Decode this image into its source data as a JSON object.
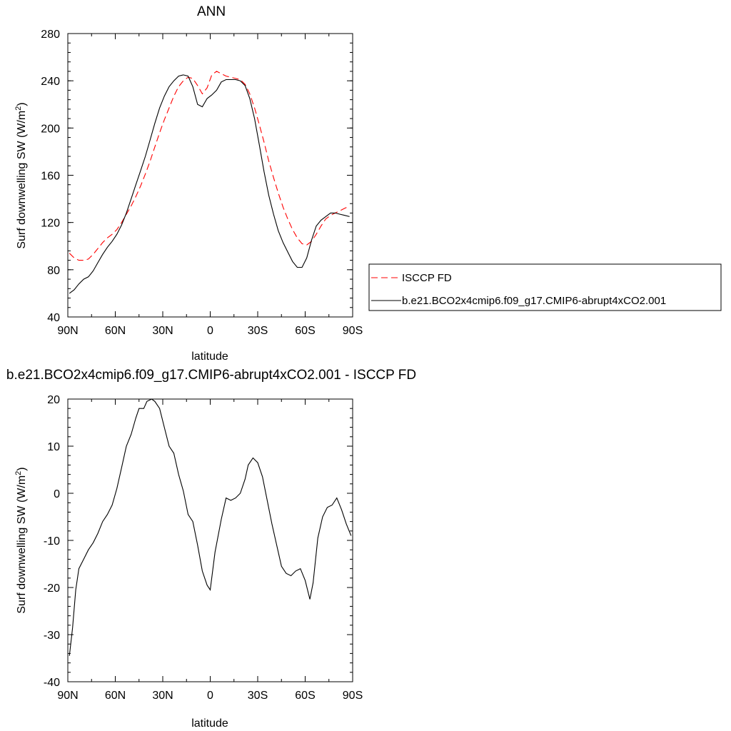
{
  "chart_data": [
    {
      "type": "line",
      "title": "ANN",
      "xlabel": "latitude",
      "ylabel": "Surf downwelling SW (W/m",
      "ylabel_sup": "2",
      "ylabel_end": ")",
      "xlim": [
        90,
        -90
      ],
      "ylim": [
        40,
        280
      ],
      "x_ticks": [
        {
          "value": 90,
          "label": "90N"
        },
        {
          "value": 60,
          "label": "60N"
        },
        {
          "value": 30,
          "label": "30N"
        },
        {
          "value": 0,
          "label": "0"
        },
        {
          "value": -30,
          "label": "30S"
        },
        {
          "value": -60,
          "label": "60S"
        },
        {
          "value": -90,
          "label": "90S"
        }
      ],
      "y_ticks": [
        40,
        80,
        120,
        160,
        200,
        240,
        280
      ],
      "legend_position": "right",
      "series": [
        {
          "name": "ISCCP FD",
          "color": "#ff0000",
          "dash": "dashed",
          "x": [
            89,
            86,
            83,
            80,
            77,
            74,
            71,
            68,
            65,
            62,
            59,
            56,
            53,
            50,
            47,
            44,
            41,
            38,
            35,
            32,
            29,
            26,
            23,
            20,
            17,
            14,
            11,
            8,
            5,
            2,
            -1,
            -4,
            -7,
            -10,
            -13,
            -16,
            -19,
            -22,
            -25,
            -28,
            -31,
            -34,
            -37,
            -40,
            -43,
            -46,
            -49,
            -52,
            -55,
            -58,
            -61,
            -64,
            -67,
            -70,
            -73,
            -76,
            -79,
            -82,
            -85,
            -88
          ],
          "y": [
            94,
            90,
            88,
            88,
            89,
            93,
            98,
            103,
            107,
            110,
            114,
            120,
            127,
            134,
            142,
            151,
            161,
            172,
            184,
            196,
            207,
            217,
            227,
            235,
            240,
            243,
            242,
            236,
            229,
            234,
            245,
            248,
            246,
            244,
            243,
            242,
            241,
            237,
            229,
            217,
            203,
            188,
            172,
            158,
            145,
            133,
            123,
            114,
            107,
            102,
            101,
            104,
            110,
            117,
            123,
            126,
            128,
            130,
            132,
            134
          ]
        },
        {
          "name": "b.e21.BCO2x4cmip6.f09_g17.CMIP6-abrupt4xCO2.001",
          "color": "#000000",
          "dash": "solid",
          "x": [
            89,
            86,
            83,
            80,
            77,
            74,
            71,
            68,
            65,
            62,
            59,
            56,
            53,
            50,
            47,
            44,
            41,
            38,
            35,
            32,
            29,
            26,
            23,
            20,
            17,
            14,
            11,
            8,
            5,
            2,
            -1,
            -4,
            -7,
            -10,
            -13,
            -16,
            -19,
            -22,
            -25,
            -28,
            -31,
            -34,
            -37,
            -40,
            -43,
            -46,
            -49,
            -52,
            -55,
            -58,
            -61,
            -64,
            -67,
            -70,
            -73,
            -76,
            -79,
            -82,
            -85,
            -88
          ],
          "y": [
            60,
            63,
            68,
            72,
            74,
            79,
            86,
            93,
            99,
            104,
            110,
            118,
            128,
            140,
            152,
            164,
            176,
            190,
            204,
            217,
            227,
            235,
            240,
            244,
            245,
            244,
            235,
            220,
            218,
            225,
            228,
            232,
            239,
            241,
            241,
            241,
            240,
            236,
            225,
            208,
            186,
            163,
            143,
            127,
            113,
            103,
            95,
            87,
            82,
            82,
            90,
            105,
            117,
            122,
            125,
            128,
            128,
            127,
            126,
            125
          ]
        }
      ]
    },
    {
      "type": "line",
      "title": "b.e21.BCO2x4cmip6.f09_g17.CMIP6-abrupt4xCO2.001 - ISCCP FD",
      "xlabel": "latitude",
      "ylabel": "Surf downwelling SW (W/m",
      "ylabel_sup": "2",
      "ylabel_end": ")",
      "xlim": [
        90,
        -90
      ],
      "ylim": [
        -40,
        20
      ],
      "x_ticks": [
        {
          "value": 90,
          "label": "90N"
        },
        {
          "value": 60,
          "label": "60N"
        },
        {
          "value": 30,
          "label": "30N"
        },
        {
          "value": 0,
          "label": "0"
        },
        {
          "value": -30,
          "label": "30S"
        },
        {
          "value": -60,
          "label": "60S"
        },
        {
          "value": -90,
          "label": "90S"
        }
      ],
      "y_ticks": [
        -40,
        -30,
        -20,
        -10,
        0,
        10,
        20
      ],
      "series": [
        {
          "color": "#000000",
          "dash": "solid",
          "x": [
            89,
            87,
            85,
            83,
            80,
            77,
            74,
            71,
            68,
            65,
            62,
            59,
            56,
            53,
            50,
            47,
            45,
            42,
            40,
            37,
            35,
            32,
            29,
            26,
            23,
            20,
            17,
            14,
            11,
            8,
            5,
            2,
            0,
            -3,
            -7,
            -10,
            -13,
            -16,
            -19,
            -22,
            -24,
            -27,
            -30,
            -33,
            -36,
            -39,
            -42,
            -45,
            -48,
            -51,
            -54,
            -57,
            -60,
            -63,
            -65,
            -68,
            -71,
            -74,
            -77,
            -80,
            -83,
            -86,
            -89
          ],
          "y": [
            -34.5,
            -28.5,
            -20.5,
            -16,
            -14,
            -12,
            -10.5,
            -8.5,
            -6,
            -4.5,
            -2.5,
            1,
            5.5,
            10,
            12.5,
            16,
            18,
            18,
            19.5,
            20,
            19.5,
            18,
            14,
            10,
            8.5,
            4,
            0.5,
            -4.5,
            -6,
            -11,
            -16.5,
            -19.5,
            -20.5,
            -12.5,
            -5.5,
            -1,
            -1.5,
            -1,
            0,
            3,
            6,
            7.5,
            6.5,
            3.5,
            -1.5,
            -6.5,
            -11,
            -15.5,
            -17,
            -17.5,
            -16.5,
            -16,
            -18.5,
            -22.5,
            -19,
            -9.5,
            -5,
            -3,
            -2.5,
            -1,
            -3.5,
            -6.5,
            -9
          ]
        }
      ]
    }
  ]
}
